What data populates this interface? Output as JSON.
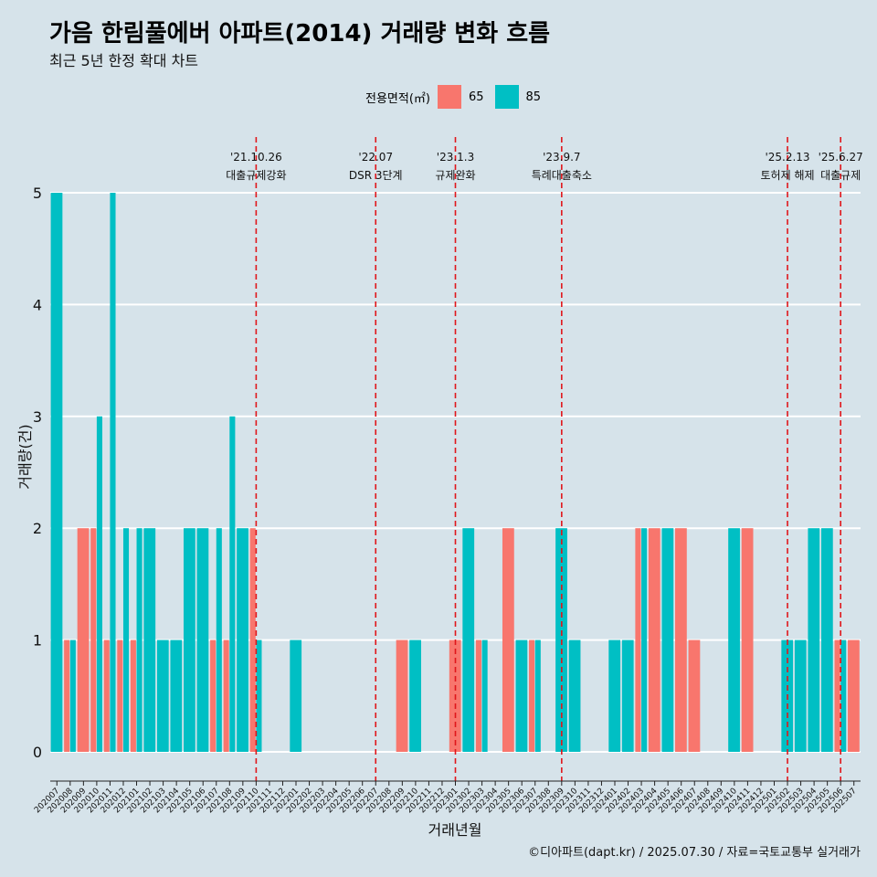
{
  "title": "가음 한림풀에버 아파트(2014) 거래량 변화 흐름",
  "subtitle": "최근 5년 한정 확대 차트",
  "caption": "©디아파트(dapt.kr) / 2025.07.30 / 자료=국토교통부 실거래가",
  "legend": {
    "title": "전용면적(㎡)",
    "items": [
      {
        "label": "65",
        "color": "#f8766d"
      },
      {
        "label": "85",
        "color": "#00bfc4"
      }
    ]
  },
  "chart_data": {
    "type": "bar",
    "xlabel": "거래년월",
    "ylabel": "거래량(건)",
    "ylim": [
      0,
      5
    ],
    "yticks": [
      0,
      1,
      2,
      3,
      4,
      5
    ],
    "grid": true,
    "legend_position": "top",
    "categories": [
      "202007",
      "202008",
      "202009",
      "202010",
      "202011",
      "202012",
      "202101",
      "202102",
      "202103",
      "202104",
      "202105",
      "202106",
      "202107",
      "202108",
      "202109",
      "202110",
      "202111",
      "202112",
      "202201",
      "202202",
      "202203",
      "202204",
      "202205",
      "202206",
      "202207",
      "202208",
      "202209",
      "202210",
      "202211",
      "202212",
      "202301",
      "202302",
      "202303",
      "202304",
      "202305",
      "202306",
      "202307",
      "202308",
      "202309",
      "202310",
      "202311",
      "202312",
      "202401",
      "202402",
      "202403",
      "202404",
      "202405",
      "202406",
      "202407",
      "202408",
      "202409",
      "202410",
      "202411",
      "202412",
      "202501",
      "202502",
      "202503",
      "202504",
      "202505",
      "202506",
      "202507"
    ],
    "series": [
      {
        "name": "65",
        "color": "#f8766d",
        "values": [
          0,
          1,
          2,
          2,
          1,
          1,
          1,
          0,
          0,
          0,
          0,
          0,
          1,
          1,
          0,
          2,
          0,
          0,
          0,
          0,
          0,
          0,
          0,
          0,
          0,
          0,
          1,
          0,
          0,
          0,
          1,
          0,
          1,
          0,
          2,
          0,
          1,
          0,
          0,
          0,
          0,
          0,
          0,
          0,
          2,
          2,
          0,
          2,
          1,
          0,
          0,
          0,
          2,
          0,
          0,
          0,
          0,
          0,
          0,
          1,
          1
        ]
      },
      {
        "name": "85",
        "color": "#00bfc4",
        "values": [
          5,
          1,
          0,
          3,
          5,
          2,
          2,
          2,
          1,
          1,
          2,
          2,
          2,
          3,
          2,
          1,
          0,
          0,
          1,
          0,
          0,
          0,
          0,
          0,
          0,
          0,
          0,
          1,
          0,
          0,
          0,
          2,
          1,
          0,
          0,
          1,
          1,
          0,
          2,
          1,
          0,
          0,
          1,
          1,
          2,
          0,
          2,
          0,
          0,
          0,
          0,
          2,
          0,
          0,
          0,
          1,
          1,
          2,
          2,
          1,
          0
        ]
      }
    ],
    "annotations": [
      {
        "date": "'21.10.26",
        "label": "대출규제강화",
        "x": "202110"
      },
      {
        "date": "'22.07",
        "label": "DSR 3단계",
        "x": "202207"
      },
      {
        "date": "'23.1.3",
        "label": "규제완화",
        "x": "202301"
      },
      {
        "date": "'23.9.7",
        "label": "특례대출축소",
        "x": "202309"
      },
      {
        "date": "'25.2.13",
        "label": "토허제 해제",
        "x": "202502"
      },
      {
        "date": "'25.6.27",
        "label": "대출규제",
        "x": "202506"
      }
    ]
  }
}
